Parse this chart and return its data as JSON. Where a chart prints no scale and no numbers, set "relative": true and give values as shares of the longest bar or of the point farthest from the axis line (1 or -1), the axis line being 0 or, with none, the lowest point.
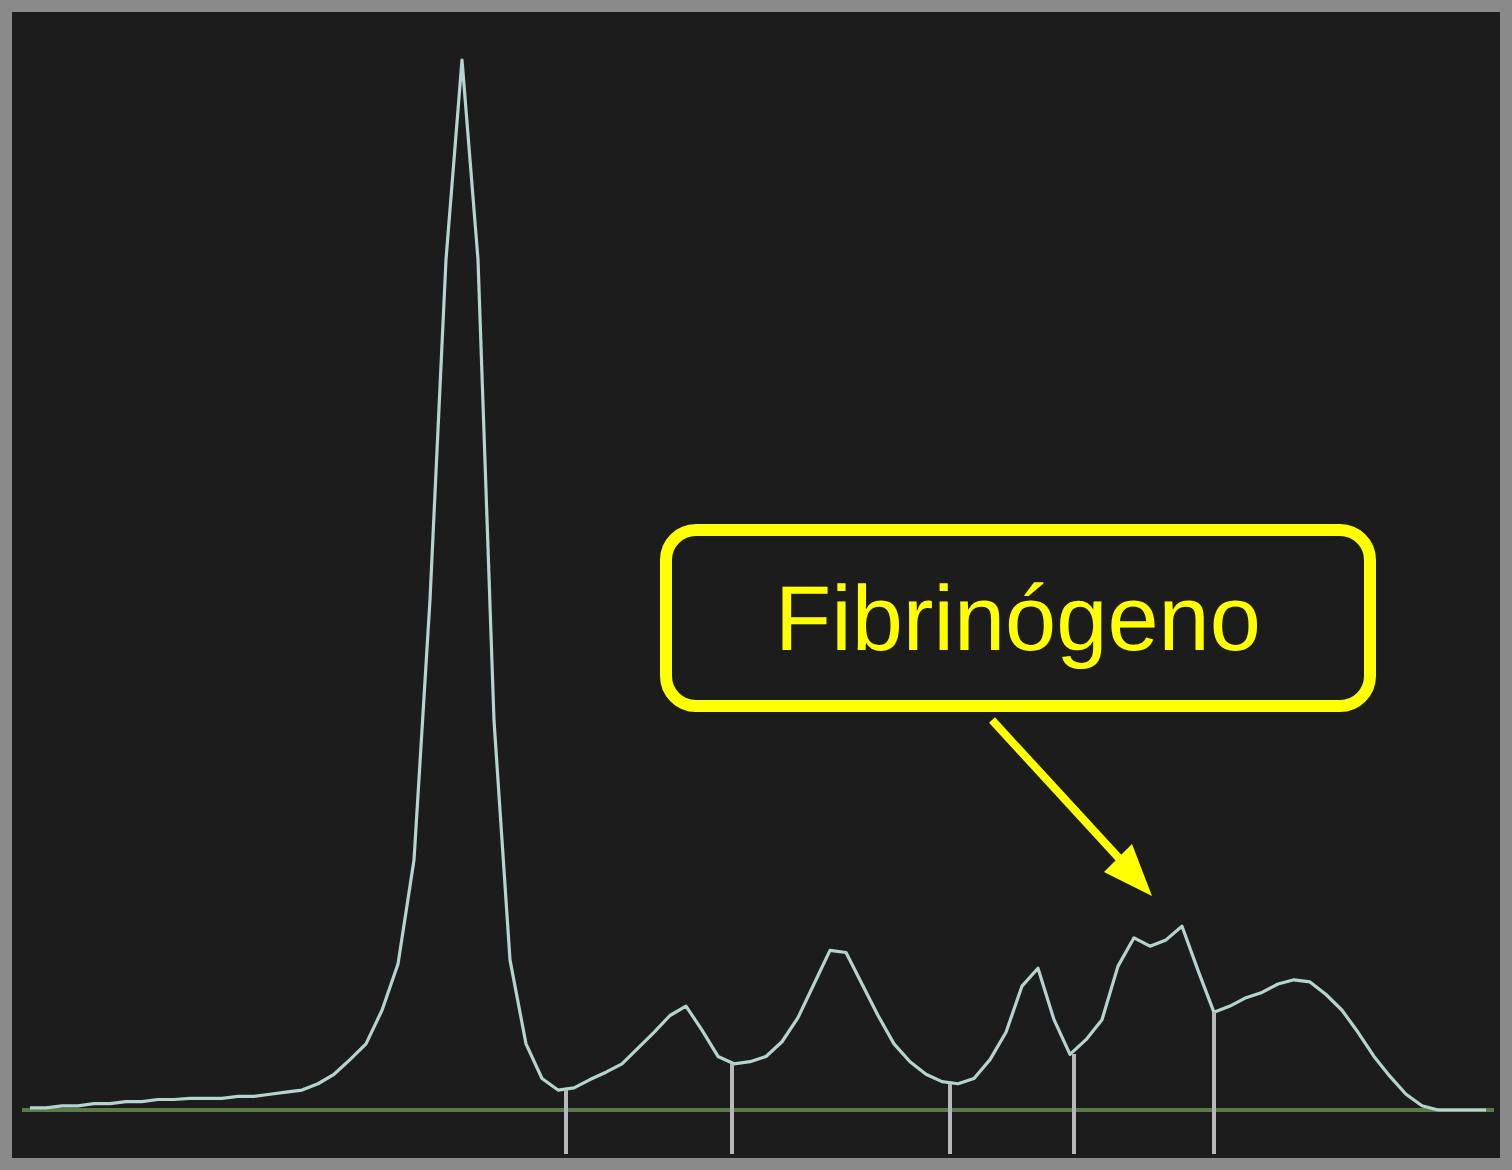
{
  "chart_data": {
    "type": "line",
    "relative": true,
    "marker": "none",
    "categories": [
      null,
      null,
      null,
      null,
      null,
      null,
      null,
      null,
      null,
      null,
      null,
      null,
      null,
      null,
      null,
      null,
      null,
      null,
      null,
      null,
      null,
      null,
      null,
      null,
      null,
      null,
      null,
      null,
      null,
      null,
      null,
      null,
      null,
      null,
      null,
      null,
      null,
      null,
      null,
      null,
      null,
      null,
      null,
      null,
      null,
      null,
      null,
      null,
      null,
      null,
      null,
      null,
      null,
      null,
      null,
      null,
      null,
      null,
      null,
      null,
      null,
      null,
      null,
      null,
      null,
      null,
      null,
      null,
      null,
      null,
      null,
      null,
      null,
      null,
      null,
      null,
      null,
      null,
      null,
      null,
      null,
      null,
      null,
      null,
      null,
      null,
      null,
      null,
      null,
      null,
      null,
      null
    ],
    "series": [
      {
        "color": "#b4d4d0",
        "values": [
          0.002,
          0.002,
          0.004,
          0.004,
          0.006,
          0.006,
          0.008,
          0.008,
          0.01,
          0.01,
          0.011,
          0.011,
          0.011,
          0.013,
          0.013,
          0.015,
          0.017,
          0.019,
          0.025,
          0.034,
          0.048,
          0.063,
          0.095,
          0.139,
          0.238,
          0.486,
          0.81,
          1,
          0.81,
          0.371,
          0.143,
          0.063,
          0.03,
          0.019,
          0.021,
          0.029,
          0.036,
          0.044,
          0.059,
          0.074,
          0.09,
          0.099,
          0.076,
          0.051,
          0.044,
          0.046,
          0.051,
          0.065,
          0.088,
          0.12,
          0.152,
          0.15,
          0.12,
          0.09,
          0.063,
          0.046,
          0.034,
          0.027,
          0.025,
          0.03,
          0.048,
          0.074,
          0.118,
          0.135,
          0.086,
          0.053,
          0.067,
          0.086,
          0.137,
          0.164,
          0.156,
          0.162,
          0.175,
          0.133,
          0.093,
          0.099,
          0.107,
          0.112,
          0.12,
          0.124,
          0.122,
          0.11,
          0.095,
          0.074,
          0.051,
          0.032,
          0.015,
          0.004,
          0,
          0,
          0,
          0
        ]
      }
    ],
    "ref_lines": [
      {
        "axis": "y",
        "value": 0,
        "color": "#5a7a4a"
      }
    ],
    "annotations": [
      "Fibrinógeno"
    ]
  }
}
